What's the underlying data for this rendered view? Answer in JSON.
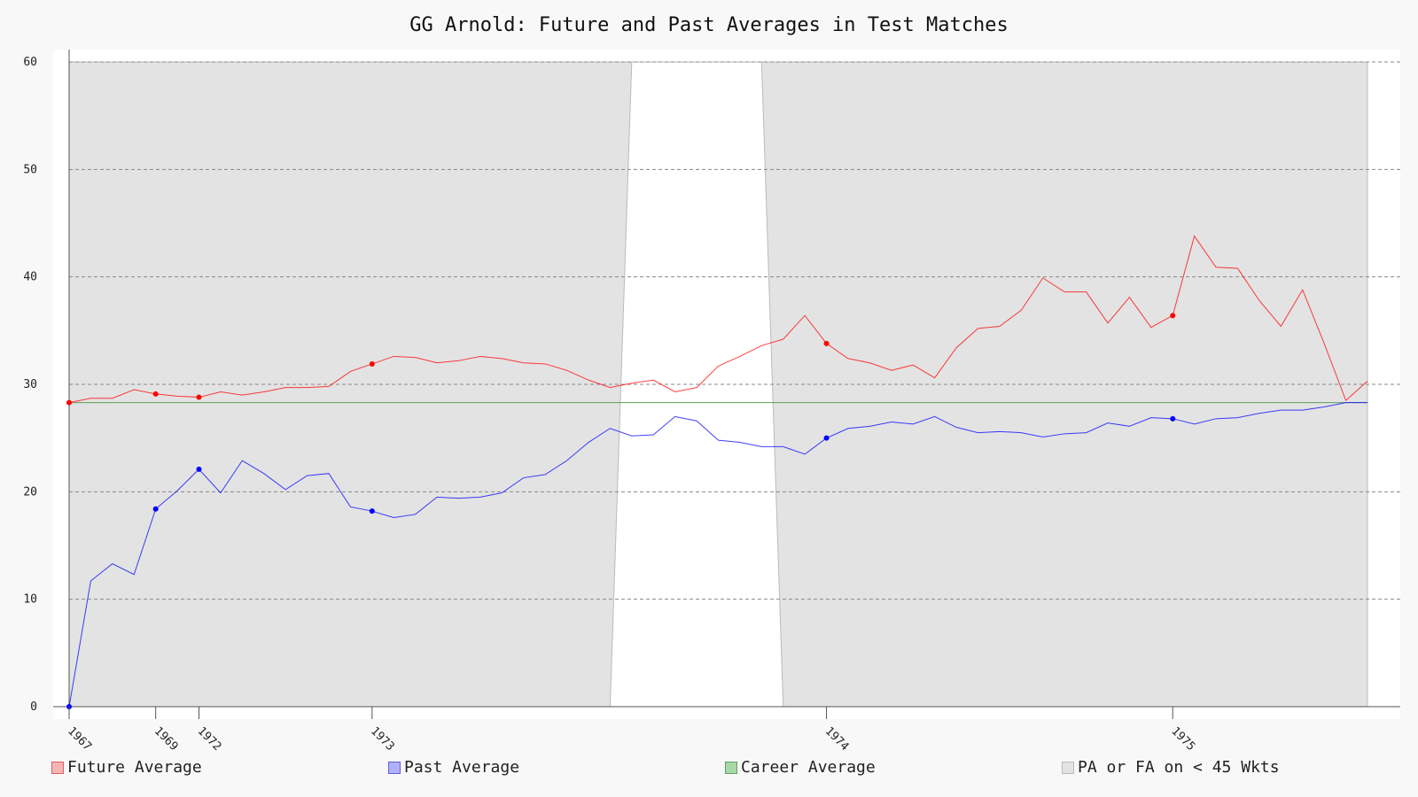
{
  "chart_data": {
    "type": "line",
    "title": "GG Arnold: Future and Past Averages in Test Matches",
    "xlabel": "",
    "ylabel": "",
    "ylim": [
      0,
      60
    ],
    "yticks": [
      "0",
      "10",
      "20",
      "30",
      "40",
      "50",
      "60"
    ],
    "x_tick_labels": [
      {
        "label": "1967",
        "x": 0
      },
      {
        "label": "1969",
        "x": 4
      },
      {
        "label": "1972",
        "x": 6
      },
      {
        "label": "1973",
        "x": 14
      },
      {
        "label": "1974",
        "x": 35
      },
      {
        "label": "1975",
        "x": 51
      }
    ],
    "x_range": [
      0,
      60
    ],
    "career_average": 28.3,
    "series": [
      {
        "name": "Future Average",
        "color": "#ff0000",
        "values": [
          28.3,
          28.7,
          28.7,
          29.5,
          29.1,
          28.9,
          28.8,
          29.3,
          29.0,
          29.3,
          29.7,
          29.7,
          29.8,
          31.2,
          31.9,
          32.6,
          32.5,
          32.0,
          32.2,
          32.6,
          32.4,
          32.0,
          31.9,
          31.3,
          30.4,
          29.7,
          30.1,
          30.4,
          29.3,
          29.7,
          31.7,
          32.6,
          33.6,
          34.2,
          36.4,
          33.8,
          32.4,
          32.0,
          31.3,
          31.8,
          30.6,
          33.4,
          35.2,
          35.4,
          36.9,
          39.9,
          38.6,
          38.6,
          35.7,
          38.1,
          35.3,
          36.4,
          43.8,
          40.9,
          40.8,
          37.8,
          35.4,
          38.8,
          33.8,
          28.5,
          30.3
        ],
        "markers": [
          0,
          4,
          6,
          14,
          35,
          51
        ]
      },
      {
        "name": "Past Average",
        "color": "#0000ff",
        "values": [
          0.0,
          11.7,
          13.3,
          12.3,
          18.4,
          20.1,
          22.1,
          19.9,
          22.9,
          21.7,
          20.2,
          21.5,
          21.7,
          18.6,
          18.2,
          17.6,
          17.9,
          19.5,
          19.4,
          19.5,
          19.9,
          21.3,
          21.6,
          22.9,
          24.6,
          25.9,
          25.2,
          25.3,
          27.0,
          26.6,
          24.8,
          24.6,
          24.2,
          24.2,
          23.5,
          25.0,
          25.9,
          26.1,
          26.5,
          26.3,
          27.0,
          26.0,
          25.5,
          25.6,
          25.5,
          25.1,
          25.4,
          25.5,
          26.4,
          26.1,
          26.9,
          26.8,
          26.3,
          26.8,
          26.9,
          27.3,
          27.6,
          27.6,
          27.9,
          28.3,
          28.3
        ],
        "markers": [
          0,
          4,
          6,
          14,
          35,
          51
        ]
      }
    ],
    "shaded_region": {
      "name": "PA or FA on < 45 Wkts",
      "color": "#e3e3e3",
      "polygon": [
        [
          0,
          0
        ],
        [
          0,
          60
        ],
        [
          60,
          60
        ],
        [
          60,
          0
        ],
        [
          33,
          0
        ],
        [
          32,
          60
        ],
        [
          26,
          60
        ],
        [
          25,
          0
        ]
      ]
    },
    "legend": {
      "placement": "bottom",
      "items": [
        {
          "label": "Future Average",
          "color": "#ff0000"
        },
        {
          "label": "Past Average",
          "color": "#0000ff"
        },
        {
          "label": "Career Average",
          "color": "#008000"
        },
        {
          "label": "PA or FA on < 45 Wkts",
          "color": "#c8c8c8"
        }
      ]
    },
    "grid": true
  }
}
